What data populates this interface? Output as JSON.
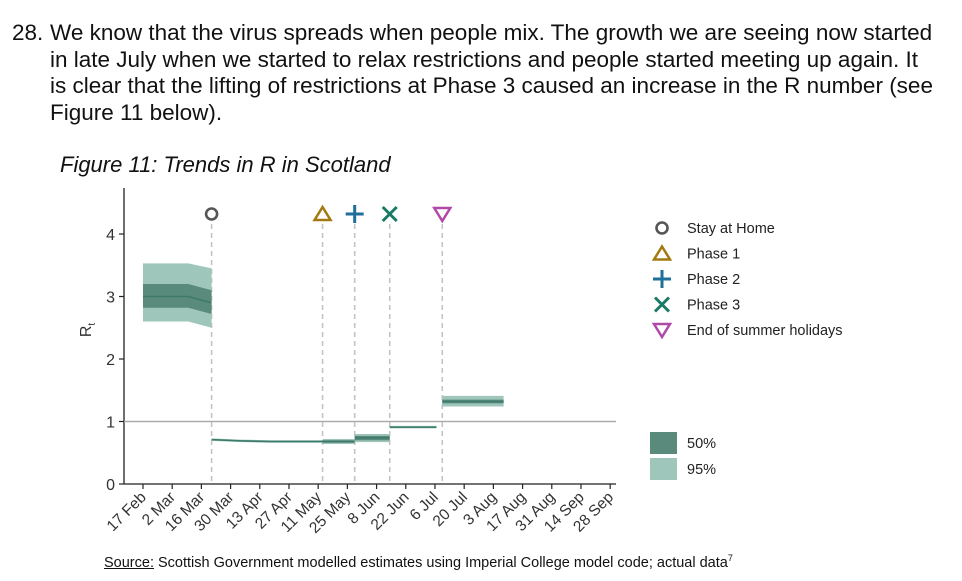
{
  "paragraph": {
    "number": "28.",
    "text": "We know that the virus spreads when people mix. The growth we are seeing now started in late July when we started to relax restrictions and people started meeting up again. It is clear that the lifting of restrictions at Phase 3 caused an increase in the R number (see Figure 11 below)."
  },
  "figure": {
    "title": "Figure 11: Trends in R in Scotland"
  },
  "source": {
    "label": "Source:",
    "text": " Scottish Government modelled estimates using Imperial College model code; actual data",
    "footnote": "7"
  },
  "chart_data": {
    "type": "area",
    "title": "Figure 11: Trends in R in Scotland",
    "ylabel": "Rt",
    "ylim": [
      0,
      4.6
    ],
    "yticks": [
      0,
      1,
      2,
      3,
      4
    ],
    "x_tick_labels": [
      "17 Feb",
      "2 Mar",
      "16 Mar",
      "30 Mar",
      "13 Apr",
      "27 Apr",
      "11 May",
      "25 May",
      "8 Jun",
      "22 Jun",
      "6 Jul",
      "20 Jul",
      "3 Aug",
      "17 Aug",
      "31 Aug",
      "14 Sep",
      "28 Sep"
    ],
    "reference_line": 1,
    "colors": {
      "band_50": "#5a8a7c",
      "band_95": "#9fc6bb",
      "median": "#3d7a6a",
      "reference": "#aaaaaa",
      "event_line": "#c4c4c4"
    },
    "events": [
      {
        "name": "Stay at Home",
        "date_index": 3,
        "marker": "circle",
        "color": "#555555"
      },
      {
        "name": "Phase 1",
        "date_index": 6.8,
        "marker": "triangle-up",
        "color": "#a37a12"
      },
      {
        "name": "Phase 2",
        "date_index": 7.9,
        "marker": "plus",
        "color": "#1f6f9a"
      },
      {
        "name": "Phase 3",
        "date_index": 9.1,
        "marker": "cross",
        "color": "#1a7a66"
      },
      {
        "name": "End of summer holidays",
        "date_index": 10.9,
        "marker": "triangle-down",
        "color": "#b04aa8"
      }
    ],
    "segments": [
      {
        "x": [
          0.65,
          1.4,
          2.2,
          3.0
        ],
        "median": [
          3.0,
          3.0,
          3.0,
          2.9
        ],
        "lo50": [
          2.82,
          2.82,
          2.82,
          2.72
        ],
        "hi50": [
          3.2,
          3.2,
          3.2,
          3.1
        ],
        "lo95": [
          2.6,
          2.6,
          2.6,
          2.5
        ],
        "hi95": [
          3.53,
          3.53,
          3.53,
          3.45
        ]
      },
      {
        "x": [
          3.0,
          4.0,
          5.0,
          6.0,
          6.8
        ],
        "median": [
          0.71,
          0.69,
          0.68,
          0.68,
          0.68
        ],
        "lo50": [
          0.7,
          0.68,
          0.67,
          0.67,
          0.67
        ],
        "hi50": [
          0.72,
          0.7,
          0.69,
          0.69,
          0.69
        ],
        "lo95": [
          0.69,
          0.67,
          0.66,
          0.66,
          0.66
        ],
        "hi95": [
          0.73,
          0.71,
          0.7,
          0.7,
          0.7
        ]
      },
      {
        "x": [
          6.8,
          7.9
        ],
        "median": [
          0.68,
          0.68
        ],
        "lo50": [
          0.66,
          0.66
        ],
        "hi50": [
          0.7,
          0.7
        ],
        "lo95": [
          0.64,
          0.64
        ],
        "hi95": [
          0.72,
          0.72
        ]
      },
      {
        "x": [
          7.9,
          9.1
        ],
        "median": [
          0.74,
          0.74
        ],
        "lo50": [
          0.7,
          0.7
        ],
        "hi50": [
          0.77,
          0.77
        ],
        "lo95": [
          0.67,
          0.67
        ],
        "hi95": [
          0.8,
          0.8
        ]
      },
      {
        "x": [
          9.1,
          10.7
        ],
        "median": [
          0.91,
          0.91
        ],
        "lo50": [
          0.9,
          0.9
        ],
        "hi50": [
          0.92,
          0.92
        ],
        "lo95": [
          0.89,
          0.89
        ],
        "hi95": [
          0.93,
          0.93
        ]
      },
      {
        "x": [
          10.9,
          13.0
        ],
        "median": [
          1.32,
          1.32
        ],
        "lo50": [
          1.29,
          1.29
        ],
        "hi50": [
          1.35,
          1.35
        ],
        "lo95": [
          1.24,
          1.24
        ],
        "hi95": [
          1.41,
          1.41
        ]
      }
    ],
    "legend": {
      "events": [
        "Stay at Home",
        "Phase 1",
        "Phase 2",
        "Phase 3",
        "End of summer holidays"
      ],
      "bands": [
        {
          "name": "50%",
          "color": "#5a8a7c"
        },
        {
          "name": "95%",
          "color": "#9fc6bb"
        }
      ],
      "placement": "right"
    },
    "grid": false
  }
}
